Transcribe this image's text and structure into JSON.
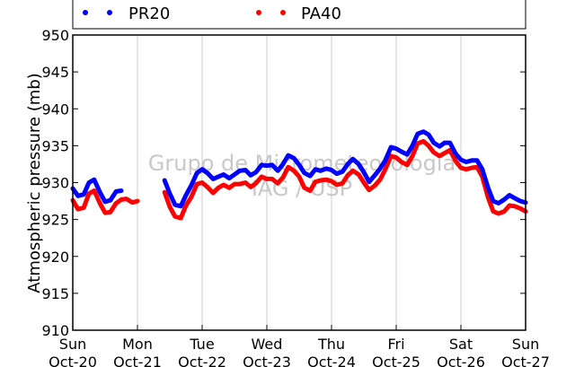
{
  "chart_data": {
    "type": "line",
    "ylabel": "Atmospheric pressure (mb)",
    "xlabel": "",
    "ylim": [
      910,
      950
    ],
    "yticks": [
      "910",
      "915",
      "920",
      "925",
      "930",
      "935",
      "940",
      "945",
      "950"
    ],
    "x_ticks": [
      {
        "line1": "Sun",
        "line2": "Oct-20"
      },
      {
        "line1": "Mon",
        "line2": "Oct-21"
      },
      {
        "line1": "Tue",
        "line2": "Oct-22"
      },
      {
        "line1": "Wed",
        "line2": "Oct-23"
      },
      {
        "line1": "Thu",
        "line2": "Oct-24"
      },
      {
        "line1": "Fri",
        "line2": "Oct-25"
      },
      {
        "line1": "Sat",
        "line2": "Oct-26"
      },
      {
        "line1": "Sun",
        "line2": "Oct-27"
      }
    ],
    "xlim_days": [
      "Oct-20",
      "Oct-27"
    ],
    "grid": "vertical",
    "legend_position": "top",
    "watermark": [
      "Grupo de Micrometeorologia",
      "IAG / USP"
    ],
    "series": [
      {
        "name": "PR20",
        "color": "#0000ff",
        "points": [
          [
            0.0,
            929.2
          ],
          [
            0.08,
            928.2
          ],
          [
            0.17,
            928.4
          ],
          [
            0.25,
            930.0
          ],
          [
            0.33,
            930.4
          ],
          [
            0.42,
            928.7
          ],
          [
            0.5,
            927.4
          ],
          [
            0.58,
            927.6
          ],
          [
            0.67,
            928.8
          ],
          [
            0.75,
            928.9
          ],
          null,
          [
            1.42,
            930.3
          ],
          [
            1.5,
            928.5
          ],
          [
            1.58,
            927.0
          ],
          [
            1.67,
            926.8
          ],
          [
            1.75,
            928.3
          ],
          [
            1.83,
            929.6
          ],
          [
            1.92,
            931.3
          ],
          [
            2.0,
            931.8
          ],
          [
            2.08,
            931.3
          ],
          [
            2.17,
            930.5
          ],
          [
            2.25,
            930.8
          ],
          [
            2.33,
            931.1
          ],
          [
            2.42,
            930.6
          ],
          [
            2.5,
            931.1
          ],
          [
            2.58,
            931.6
          ],
          [
            2.67,
            931.7
          ],
          [
            2.75,
            931.0
          ],
          [
            2.83,
            931.4
          ],
          [
            2.92,
            932.4
          ],
          [
            3.0,
            932.3
          ],
          [
            3.08,
            932.4
          ],
          [
            3.17,
            931.6
          ],
          [
            3.25,
            932.5
          ],
          [
            3.33,
            933.7
          ],
          [
            3.42,
            933.3
          ],
          [
            3.5,
            932.4
          ],
          [
            3.58,
            931.3
          ],
          [
            3.67,
            930.9
          ],
          [
            3.75,
            931.8
          ],
          [
            3.83,
            931.6
          ],
          [
            3.92,
            931.9
          ],
          [
            4.0,
            931.7
          ],
          [
            4.08,
            931.2
          ],
          [
            4.17,
            931.5
          ],
          [
            4.25,
            932.5
          ],
          [
            4.33,
            933.2
          ],
          [
            4.42,
            932.5
          ],
          [
            4.5,
            931.4
          ],
          [
            4.58,
            930.1
          ],
          [
            4.67,
            931.0
          ],
          [
            4.75,
            931.9
          ],
          [
            4.83,
            933.0
          ],
          [
            4.92,
            934.8
          ],
          [
            5.0,
            934.6
          ],
          [
            5.08,
            934.2
          ],
          [
            5.17,
            933.8
          ],
          [
            5.25,
            935.0
          ],
          [
            5.33,
            936.6
          ],
          [
            5.42,
            936.9
          ],
          [
            5.5,
            936.5
          ],
          [
            5.58,
            935.4
          ],
          [
            5.67,
            934.9
          ],
          [
            5.75,
            935.4
          ],
          [
            5.83,
            935.4
          ],
          [
            5.92,
            933.9
          ],
          [
            6.0,
            933.1
          ],
          [
            6.08,
            932.8
          ],
          [
            6.17,
            933.0
          ],
          [
            6.25,
            933.0
          ],
          [
            6.33,
            931.8
          ],
          [
            6.42,
            929.3
          ],
          [
            6.5,
            927.5
          ],
          [
            6.58,
            927.2
          ],
          [
            6.67,
            927.7
          ],
          [
            6.75,
            928.3
          ],
          [
            6.83,
            927.9
          ],
          [
            6.92,
            927.5
          ],
          [
            7.0,
            927.3
          ]
        ]
      },
      {
        "name": "PA40",
        "color": "#ff0000",
        "points": [
          [
            0.0,
            927.6
          ],
          [
            0.08,
            926.4
          ],
          [
            0.17,
            926.6
          ],
          [
            0.25,
            928.5
          ],
          [
            0.33,
            928.9
          ],
          [
            0.42,
            927.2
          ],
          [
            0.5,
            925.9
          ],
          [
            0.58,
            926.0
          ],
          [
            0.67,
            927.2
          ],
          [
            0.75,
            927.7
          ],
          [
            0.83,
            927.8
          ],
          [
            0.92,
            927.3
          ],
          [
            1.0,
            927.5
          ],
          null,
          [
            1.42,
            928.7
          ],
          [
            1.5,
            926.7
          ],
          [
            1.58,
            925.4
          ],
          [
            1.67,
            925.2
          ],
          [
            1.75,
            926.9
          ],
          [
            1.83,
            928.0
          ],
          [
            1.92,
            929.8
          ],
          [
            2.0,
            930.0
          ],
          [
            2.08,
            929.4
          ],
          [
            2.17,
            928.6
          ],
          [
            2.25,
            929.3
          ],
          [
            2.33,
            929.7
          ],
          [
            2.42,
            929.3
          ],
          [
            2.5,
            929.8
          ],
          [
            2.58,
            929.8
          ],
          [
            2.67,
            930.0
          ],
          [
            2.75,
            929.4
          ],
          [
            2.83,
            929.9
          ],
          [
            2.92,
            930.8
          ],
          [
            3.0,
            930.5
          ],
          [
            3.08,
            930.5
          ],
          [
            3.17,
            929.9
          ],
          [
            3.25,
            930.7
          ],
          [
            3.33,
            932.1
          ],
          [
            3.42,
            931.6
          ],
          [
            3.5,
            930.8
          ],
          [
            3.58,
            929.3
          ],
          [
            3.67,
            928.9
          ],
          [
            3.75,
            930.1
          ],
          [
            3.83,
            930.3
          ],
          [
            3.92,
            930.4
          ],
          [
            4.0,
            930.2
          ],
          [
            4.08,
            929.7
          ],
          [
            4.17,
            929.9
          ],
          [
            4.25,
            931.0
          ],
          [
            4.33,
            931.6
          ],
          [
            4.42,
            931.1
          ],
          [
            4.5,
            930.0
          ],
          [
            4.58,
            929.0
          ],
          [
            4.67,
            929.6
          ],
          [
            4.75,
            930.4
          ],
          [
            4.83,
            931.8
          ],
          [
            4.92,
            933.6
          ],
          [
            5.0,
            933.4
          ],
          [
            5.08,
            932.8
          ],
          [
            5.17,
            932.4
          ],
          [
            5.25,
            933.6
          ],
          [
            5.33,
            935.3
          ],
          [
            5.42,
            935.6
          ],
          [
            5.5,
            935.0
          ],
          [
            5.58,
            934.1
          ],
          [
            5.67,
            933.6
          ],
          [
            5.75,
            934.0
          ],
          [
            5.83,
            934.4
          ],
          [
            5.92,
            932.9
          ],
          [
            6.0,
            932.0
          ],
          [
            6.08,
            931.8
          ],
          [
            6.17,
            932.0
          ],
          [
            6.25,
            932.1
          ],
          [
            6.33,
            930.8
          ],
          [
            6.42,
            928.0
          ],
          [
            6.5,
            926.1
          ],
          [
            6.58,
            925.8
          ],
          [
            6.67,
            926.1
          ],
          [
            6.75,
            926.9
          ],
          [
            6.83,
            926.8
          ],
          [
            6.92,
            926.5
          ],
          [
            7.0,
            926.1
          ]
        ]
      }
    ]
  }
}
